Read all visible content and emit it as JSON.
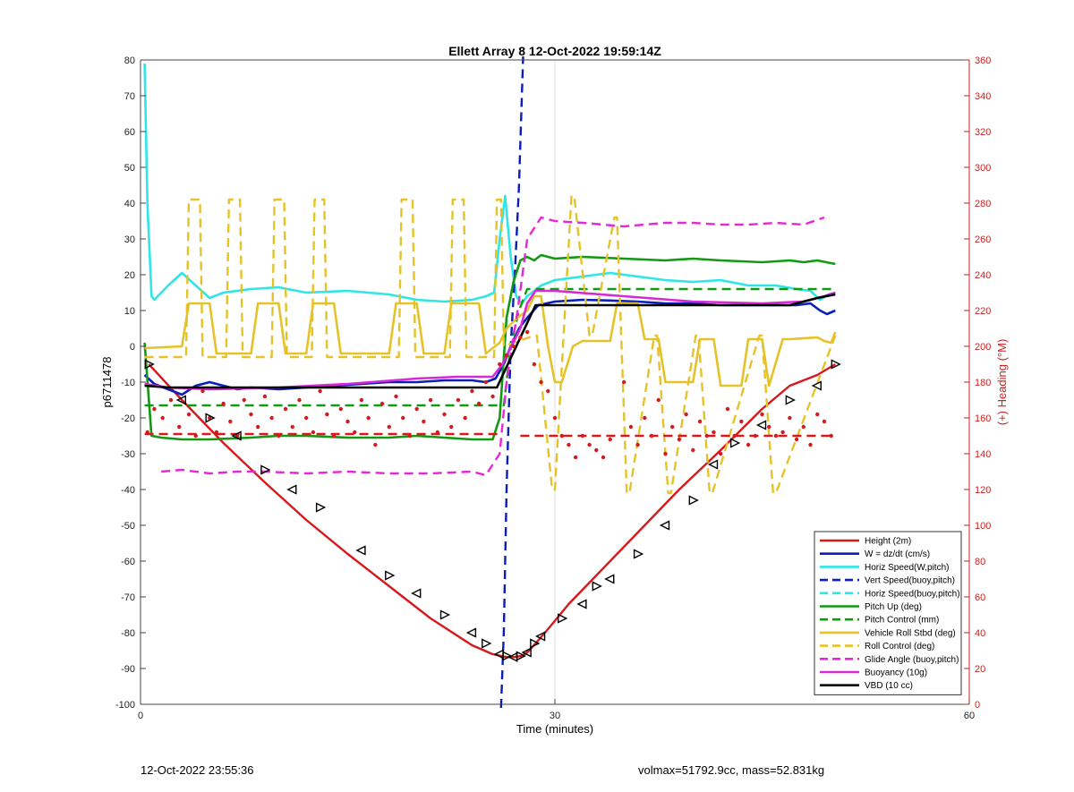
{
  "chart_data": {
    "type": "line",
    "title": "Ellett Array 8 12-Oct-2022 19:59:14Z",
    "xlabel": "Time (minutes)",
    "ylabel": "p6711478",
    "y2label": "(+) Heading (°M)",
    "xlim": [
      0,
      60
    ],
    "ylim": [
      -100,
      80
    ],
    "y2lim": [
      0,
      360
    ],
    "xticks": [
      0,
      30,
      60
    ],
    "yticks": [
      -100,
      -90,
      -80,
      -70,
      -60,
      -50,
      -40,
      -30,
      -20,
      -10,
      0,
      10,
      20,
      30,
      40,
      50,
      60,
      70,
      80
    ],
    "y2ticks": [
      0,
      20,
      40,
      60,
      80,
      100,
      120,
      140,
      160,
      180,
      200,
      220,
      240,
      260,
      280,
      300,
      320,
      340,
      360
    ],
    "grid": "x-only",
    "legend_position": "bottom-right",
    "colors": {
      "height": "#d7191c",
      "w": "#0a1fb5",
      "horiz_w": "#2ee6e6",
      "vert_buoy": "#0a1fb5",
      "horiz_buoy": "#2ee6e6",
      "pitch": "#119a11",
      "pitch_ctrl": "#119a11",
      "roll": "#e6c229",
      "roll_ctrl": "#e6c229",
      "glide": "#e627d6",
      "buoy": "#d62ad6",
      "vbd": "#000000",
      "heading": "#d7191c",
      "axis2": "#cc2222"
    },
    "series": [
      {
        "key": "height",
        "name": "Height (2m)",
        "style": "solid",
        "x": [
          0.6,
          3,
          6,
          9,
          12,
          15,
          18,
          21,
          24,
          25.5,
          26.5,
          27,
          27.6,
          28,
          28.6,
          29.5,
          31,
          33,
          36,
          39,
          42,
          45,
          47,
          49,
          50.3
        ],
        "y": [
          -5,
          -15,
          -27,
          -38,
          -48.5,
          -58,
          -67,
          -76,
          -83.5,
          -86,
          -86.8,
          -86.8,
          -86.5,
          -85.5,
          -83,
          -79,
          -72,
          -64,
          -52,
          -40,
          -29,
          -17.5,
          -11,
          -8,
          -5
        ]
      },
      {
        "key": "w",
        "name": "W = dz/dt (cm/s)",
        "style": "solid",
        "x": [
          0.3,
          1,
          2,
          3,
          4,
          5,
          6,
          7,
          8,
          10,
          12,
          14,
          16,
          18,
          20,
          22,
          24,
          25,
          25.7,
          26.3,
          26.8,
          27.4,
          28,
          28.8,
          30,
          32,
          34,
          36,
          38,
          40,
          42,
          44,
          46,
          47.5,
          48.5,
          49.2,
          49.7,
          50.3
        ],
        "y": [
          -8,
          -10.5,
          -12,
          -13.5,
          -11,
          -10,
          -11,
          -12,
          -11.5,
          -12,
          -11.5,
          -11,
          -10.5,
          -10,
          -10,
          -9.5,
          -9.5,
          -10,
          -9,
          -5,
          0,
          5,
          8,
          11.5,
          12.5,
          13,
          12.8,
          12.5,
          12,
          12,
          11.5,
          11.5,
          11.5,
          11.5,
          12,
          10,
          9,
          10
        ]
      },
      {
        "key": "horiz_w",
        "name": "Horiz Speed(W,pitch)",
        "style": "solid",
        "x": [
          0.3,
          0.5,
          0.8,
          1,
          2,
          3,
          4,
          5,
          6,
          8,
          10,
          12,
          15,
          18,
          20,
          22,
          24,
          25,
          25.6,
          26,
          26.4,
          26.8,
          27.2,
          27.6,
          28,
          29,
          30,
          32,
          34,
          36,
          38,
          40,
          42,
          44,
          46,
          47.5,
          48.5,
          49.2,
          49.8,
          50.3
        ],
        "y": [
          79,
          40,
          14,
          13,
          17,
          20.5,
          17,
          13.5,
          15,
          16,
          16.5,
          15,
          15.5,
          14.5,
          13,
          12.5,
          13,
          14,
          15,
          30,
          42,
          25,
          14,
          12,
          14,
          17,
          18.5,
          19.5,
          20.5,
          19.5,
          18.5,
          18,
          18.5,
          17,
          17,
          16,
          15.5,
          13,
          14.5,
          15
        ]
      },
      {
        "key": "vert_buoy",
        "name": "Vert Speed(buoy,pitch)",
        "style": "dashed",
        "x": [
          26.1,
          26.3,
          26.5,
          26.8,
          27.1,
          27.4,
          27.7
        ],
        "y": [
          -101,
          -80,
          -40,
          0,
          20,
          45,
          81
        ]
      },
      {
        "key": "horiz_buoy",
        "name": "Horiz Speed(buoy,pitch)",
        "style": "dashed",
        "x": [],
        "y": []
      },
      {
        "key": "pitch",
        "name": "Pitch Up (deg)",
        "style": "solid",
        "x": [
          0.3,
          0.8,
          1.5,
          3,
          5,
          8,
          10,
          12,
          15,
          18,
          20,
          22,
          24,
          25.5,
          26,
          26.5,
          27,
          27.5,
          28,
          28.5,
          29,
          30,
          32,
          35,
          38,
          40,
          42,
          45,
          47,
          48,
          49,
          50.3
        ],
        "y": [
          1,
          -25,
          -25.5,
          -26,
          -26,
          -25.5,
          -25,
          -25,
          -25.5,
          -25.5,
          -25,
          -25.5,
          -26,
          -26,
          -20,
          8,
          18,
          24,
          25,
          24,
          25.5,
          24.5,
          25,
          24.5,
          24,
          24.5,
          24,
          23.5,
          24,
          23.5,
          24,
          23
        ]
      },
      {
        "key": "pitch_ctrl",
        "name": "Pitch Control (mm)",
        "style": "dashed",
        "x": [
          0.3,
          25.8,
          26.3,
          26.8,
          27.4,
          28,
          50.3
        ],
        "y": [
          -16.5,
          -16.5,
          -16.5,
          0,
          10,
          16,
          16
        ]
      },
      {
        "key": "roll",
        "name": "Vehicle Roll Stbd (deg)",
        "style": "solid",
        "x": [
          0.3,
          3,
          3.5,
          5,
          5.5,
          8,
          8.5,
          10,
          10.5,
          12,
          12.5,
          14,
          14.5,
          18,
          18.5,
          20,
          20.5,
          22,
          22.5,
          24.5,
          25,
          26,
          26.5,
          27.3,
          28,
          28.5,
          29,
          29.5,
          30,
          30.5,
          31.3,
          32,
          34,
          34.5,
          36,
          36.5,
          37.5,
          38,
          40,
          40.5,
          41.5,
          42,
          43.5,
          44,
          45,
          45.5,
          46.5,
          47,
          49,
          49.5,
          50,
          50.3
        ],
        "y": [
          -0.5,
          0,
          12,
          12,
          -2,
          -2,
          12,
          12,
          -2,
          -2,
          12,
          12,
          -2,
          -2,
          12,
          12,
          -2,
          -2,
          12,
          12,
          -2,
          1,
          5,
          8,
          10,
          14,
          14,
          0,
          -10,
          -10,
          0,
          1.5,
          1.5,
          12,
          12,
          2,
          2,
          -10,
          -10,
          2,
          2,
          -11,
          -11,
          2,
          2,
          -11,
          2,
          2,
          2.5,
          1.5,
          1,
          4
        ]
      },
      {
        "key": "roll_ctrl",
        "name": "Roll Control (deg)",
        "style": "dashed",
        "x": [
          0.3,
          3.3,
          3.5,
          4.3,
          4.5,
          6.2,
          6.4,
          7.2,
          7.4,
          9.5,
          9.7,
          10.4,
          10.6,
          12.4,
          12.6,
          13.3,
          13.5,
          18.7,
          18.9,
          19.7,
          19.9,
          22.4,
          22.6,
          23.4,
          23.6,
          25.6,
          25.8,
          26.1,
          26.3,
          28.5,
          28.7,
          29.8,
          30,
          31.2,
          31.4,
          32.5,
          32.7,
          34.3,
          34.5,
          35.2,
          35.4,
          37.2,
          37.4,
          38.2,
          38.4,
          40.2,
          40.4,
          41.2,
          41.4,
          44.8,
          45,
          45.8,
          46,
          50.3
        ],
        "y": [
          -3,
          -3,
          41,
          41,
          -3,
          -3,
          41,
          41,
          -3,
          -3,
          41,
          41,
          -3,
          -3,
          41,
          41,
          -3,
          -3,
          41,
          41,
          -3,
          -3,
          41,
          41,
          -3,
          -3,
          41,
          41,
          0,
          3,
          3,
          -40,
          -40,
          42,
          42,
          3,
          3,
          36,
          36,
          -41,
          -41,
          3,
          3,
          -41,
          -41,
          3,
          3,
          -41,
          -41,
          3,
          3,
          -41,
          -41,
          3
        ]
      },
      {
        "key": "glide",
        "name": "Glide Angle (buoy,pitch)",
        "style": "dashed",
        "x": [
          1.5,
          3,
          5,
          7,
          9,
          12,
          15,
          18,
          21,
          24,
          25,
          26,
          26.5,
          27.3,
          28,
          28.5,
          29,
          30,
          32,
          35,
          38,
          40,
          42,
          44,
          46,
          48,
          49.5
        ],
        "y": [
          -35,
          -34.5,
          -35.5,
          -35,
          -35,
          -35.5,
          -35,
          -35.5,
          -35.5,
          -35,
          -36,
          -30,
          -10,
          10,
          30,
          33,
          36,
          35,
          34.5,
          33.5,
          34.5,
          34.5,
          34,
          34,
          34.5,
          34,
          36
        ]
      },
      {
        "key": "buoy",
        "name": "Buoyancy (10g)",
        "style": "solid",
        "x": [
          0.3,
          2,
          5,
          10,
          15,
          20,
          23,
          25.5,
          26.2,
          27.5,
          28,
          28.6,
          30,
          35,
          40,
          45,
          48,
          49.5,
          50.3
        ],
        "y": [
          -10.5,
          -11.5,
          -12,
          -11.5,
          -10.5,
          -9,
          -8.5,
          -8.5,
          -5,
          5,
          12,
          15.5,
          15.5,
          14,
          12.5,
          12,
          12.5,
          14,
          15
        ]
      },
      {
        "key": "vbd",
        "name": "VBD (10 cc)",
        "style": "solid",
        "x": [
          0.3,
          2,
          25,
          25.8,
          28.6,
          47,
          48,
          49,
          50.3
        ],
        "y": [
          -11,
          -11.5,
          -11.5,
          -11.5,
          11.5,
          11.5,
          12.5,
          13.5,
          14.5
        ]
      },
      {
        "key": "heading",
        "name": "",
        "style": "dots",
        "axis": "right",
        "x": [
          0.5,
          1,
          1.6,
          2.2,
          2.8,
          3.5,
          4,
          4.5,
          5,
          5.5,
          6,
          6.5,
          7,
          7.5,
          8,
          8.5,
          9,
          9.5,
          10,
          10.5,
          11,
          11.5,
          12,
          12.5,
          13,
          13.5,
          14,
          14.5,
          15,
          15.5,
          16,
          16.5,
          17,
          17.5,
          18,
          18.5,
          19,
          19.5,
          20,
          20.5,
          21,
          21.5,
          22,
          22.5,
          23,
          23.5,
          24,
          24.5,
          25,
          25.5,
          26,
          26.5,
          27,
          27.5,
          28,
          28.5,
          29,
          29.5,
          30,
          30.5,
          31,
          31.5,
          32,
          32.5,
          33,
          33.5,
          34,
          35,
          35.5,
          36,
          36.5,
          37,
          37.5,
          38,
          38.5,
          39,
          39.5,
          40,
          40.5,
          41,
          41.5,
          42,
          42.5,
          43,
          43.5,
          44,
          44.5,
          45,
          45.5,
          46,
          46.5,
          47,
          47.5,
          48,
          48.5,
          49,
          49.5,
          50
        ],
        "y": [
          152,
          165,
          160,
          170,
          155,
          162,
          150,
          175,
          160,
          152,
          168,
          158,
          150,
          170,
          162,
          155,
          172,
          160,
          150,
          165,
          155,
          170,
          160,
          152,
          175,
          162,
          150,
          165,
          158,
          152,
          170,
          160,
          145,
          168,
          155,
          172,
          160,
          150,
          165,
          158,
          170,
          152,
          162,
          155,
          170,
          160,
          175,
          168,
          180,
          172,
          190,
          195,
          200,
          205,
          208,
          190,
          180,
          175,
          160,
          150,
          145,
          138,
          150,
          145,
          142,
          138,
          148,
          180,
          155,
          145,
          160,
          150,
          170,
          140,
          155,
          148,
          162,
          142,
          158,
          150,
          152,
          140,
          165,
          150,
          158,
          145,
          150,
          162,
          155,
          150,
          152,
          160,
          148,
          155,
          145,
          162,
          158,
          150
        ]
      },
      {
        "key": "heading_target",
        "name": "",
        "style": "dashed",
        "axis": "right",
        "x": [
          0.3,
          26,
          26.1,
          27.5,
          50.3
        ],
        "y": [
          151,
          151,
          null,
          150,
          150
        ]
      }
    ],
    "markers": {
      "x": [
        0.6,
        3,
        5,
        7,
        9,
        11,
        13,
        16,
        18,
        20,
        22,
        24,
        25,
        26,
        26.5,
        27,
        27.5,
        28,
        28.5,
        29,
        30.5,
        32,
        33,
        34,
        36,
        38,
        40,
        41.5,
        43,
        45,
        47,
        49,
        50.3
      ],
      "y": [
        -5,
        -15,
        -20,
        -25,
        -34.5,
        -40,
        -45,
        -57,
        -64,
        -69,
        -75,
        -80,
        -83,
        -86,
        -86.5,
        -86.8,
        -86.5,
        -85.5,
        -83,
        -81,
        -76,
        -72,
        -67,
        -65,
        -58,
        -50,
        -43,
        -33,
        -27,
        -22,
        -15,
        -11,
        -5
      ]
    },
    "footer_left": "12-Oct-2022 23:55:36",
    "footer_right": "volmax=51792.9cc, mass=52.831kg"
  }
}
